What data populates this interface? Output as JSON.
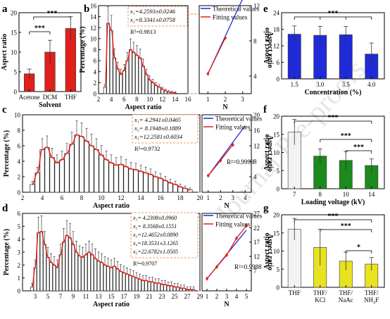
{
  "watermark": "Journal Pre-proofs",
  "colors": {
    "red": "#e0201b",
    "blue": "#1f2bd6",
    "green": "#1c8a1c",
    "yellow": "#e8e320",
    "white": "#f2f2f2",
    "dashOrange": "#e8763a"
  },
  "chart_data": [
    {
      "panel": "a",
      "type": "bar",
      "categories": [
        "Acetone",
        "DCM",
        "THF"
      ],
      "values": [
        4.5,
        10.0,
        16.0
      ],
      "errors": [
        1.2,
        3.0,
        3.0
      ],
      "xlabel": "Solvent",
      "ylabel": "Aspect ratio",
      "ylim": [
        0,
        20
      ],
      "yticks": [
        "0",
        "5",
        "10",
        "15",
        "20"
      ],
      "significance": [
        {
          "pair": [
            "Acetone",
            "DCM"
          ],
          "label": "***"
        },
        {
          "pair": [
            "Acetone",
            "THF"
          ],
          "label": "***"
        }
      ]
    },
    {
      "panel": "b",
      "type": "bar",
      "subtype": "histogram-with-fit",
      "xlabel": "Aspect ratio",
      "ylabel": "Percentage (%)",
      "xlim": [
        2,
        16
      ],
      "ylim": [
        0,
        16
      ],
      "xticks": [
        "2",
        "4",
        "6",
        "8",
        "10",
        "12",
        "14",
        "16"
      ],
      "yticks": [
        "0",
        "2",
        "4",
        "6",
        "8",
        "10",
        "12",
        "14",
        "16"
      ],
      "values": [
        1.2,
        12.8,
        11.5,
        6.5,
        4.5,
        3.5,
        4.2,
        6.0,
        8.0,
        7.5,
        7.0,
        6.5,
        5.0,
        3.5,
        2.5,
        2.0,
        1.5,
        1.2,
        0.8,
        0.5,
        0.3,
        0.2,
        0.1
      ],
      "bin_start": 3.0,
      "bin_width": 0.5,
      "fit_labels": [
        "x₁=4.2593±0.0246",
        "x₂=8.3341±0.0758",
        "R²=0.9813"
      ]
    },
    {
      "panel": "b-inset",
      "type": "line",
      "xlabel": "N",
      "ylabel": "Aspect ratio",
      "xlim": [
        0.5,
        3.5
      ],
      "ylim": [
        2,
        12
      ],
      "xticks": [
        "1",
        "2",
        "3"
      ],
      "yticks": [
        "4",
        "8",
        "12"
      ],
      "legend": [
        "Theoretical values",
        "Fitting values"
      ],
      "series": [
        {
          "name": "Theoretical values",
          "x": [
            1,
            2,
            3
          ],
          "y": [
            4.26,
            8.52,
            12.78
          ]
        },
        {
          "name": "Fitting values",
          "x": [
            1,
            2
          ],
          "y": [
            4.26,
            8.33
          ]
        }
      ]
    },
    {
      "panel": "c",
      "type": "bar",
      "subtype": "histogram-with-fit",
      "xlabel": "Aspect ratio",
      "ylabel": "Percentage (%)",
      "xlim": [
        2,
        20
      ],
      "ylim": [
        0,
        10
      ],
      "xticks": [
        "2",
        "4",
        "6",
        "8",
        "10",
        "12",
        "14",
        "16",
        "18",
        "20"
      ],
      "yticks": [
        "0",
        "2",
        "4",
        "6",
        "8",
        "10"
      ],
      "values": [
        1.0,
        2.5,
        5.5,
        5.8,
        4.5,
        3.8,
        4.2,
        5.0,
        6.2,
        7.4,
        7.2,
        6.6,
        6.0,
        5.5,
        4.8,
        4.2,
        3.8,
        3.5,
        3.6,
        3.3,
        3.0,
        2.9,
        2.7,
        2.5,
        2.3,
        2.0,
        1.8,
        1.5,
        1.2,
        1.0,
        0.7,
        0.5,
        0.3
      ],
      "bin_start": 3.0,
      "bin_width": 0.5,
      "fit_labels": [
        "x₁= 4.2941±0.0465",
        "x₂= 8.1948±0.1889",
        "x₃=12.2581±0.6034",
        "R²=0.9732"
      ]
    },
    {
      "panel": "c-inset",
      "type": "line",
      "xlabel": "N",
      "ylabel": "Aspect ratio",
      "xlim": [
        0.5,
        4.5
      ],
      "ylim": [
        0,
        20
      ],
      "xticks": [
        "1",
        "2",
        "3",
        "4"
      ],
      "yticks": [
        "4",
        "8",
        "12",
        "16",
        "20"
      ],
      "legend": [
        "Theoretical values",
        "Fitting values"
      ],
      "annotation": "R²=0.9998",
      "series": [
        {
          "name": "Theoretical values",
          "x": [
            1,
            2,
            3,
            4
          ],
          "y": [
            4.29,
            8.59,
            12.88,
            17.18
          ]
        },
        {
          "name": "Fitting values",
          "x": [
            1,
            2,
            3
          ],
          "y": [
            4.29,
            8.19,
            12.26
          ]
        }
      ]
    },
    {
      "panel": "d",
      "type": "bar",
      "subtype": "histogram-with-fit",
      "xlabel": "Aspect ratio",
      "ylabel": "Percentage (%)",
      "xlim": [
        1,
        29
      ],
      "ylim": [
        0,
        6
      ],
      "xticks": [
        "3",
        "5",
        "7",
        "9",
        "11",
        "13",
        "15",
        "17",
        "19",
        "21",
        "23",
        "25",
        "27",
        "29"
      ],
      "yticks": [
        "0",
        "1",
        "2",
        "3",
        "4",
        "5",
        "6"
      ],
      "values": [
        0.3,
        1.8,
        4.5,
        4.6,
        3.6,
        2.6,
        2.2,
        2.0,
        1.8,
        2.8,
        3.8,
        4.3,
        4.1,
        3.6,
        3.0,
        2.7,
        2.6,
        2.8,
        3.0,
        2.8,
        2.5,
        2.3,
        2.2,
        2.0,
        1.9,
        1.8,
        1.9,
        1.7,
        1.5,
        1.4,
        1.3,
        1.2,
        1.1,
        1.0,
        0.9,
        0.8,
        0.8,
        0.7,
        0.7,
        0.6,
        0.6,
        0.5,
        0.5,
        0.4,
        0.4,
        0.3,
        0.3,
        0.2,
        0.2,
        0.1,
        0.1,
        0.1
      ],
      "bin_start": 2.5,
      "bin_width": 0.5,
      "fit_labels": [
        "x₁= 4.2308±0.0960",
        "x₂= 8.3568±0.1551",
        "x₃=12.4652±0.0890",
        "x₄=18.3531±3.1265",
        "x₅=22.6782±1.0505",
        "R²=0.9707"
      ]
    },
    {
      "panel": "d-inset",
      "type": "line",
      "xlabel": "N",
      "ylabel": "Aspect ratio",
      "xlim": [
        0.5,
        5.5
      ],
      "ylim": [
        0,
        27
      ],
      "xticks": [
        "1",
        "2",
        "3",
        "4",
        "5"
      ],
      "yticks": [
        "7",
        "12",
        "17",
        "22",
        "27"
      ],
      "legend": [
        "Theoretical values",
        "Fitting values"
      ],
      "annotation": "R²=0.9988",
      "series": [
        {
          "name": "Theoretical values",
          "x": [
            1,
            2,
            3,
            4,
            5
          ],
          "y": [
            4.23,
            8.46,
            12.69,
            16.92,
            21.15
          ]
        },
        {
          "name": "Fitting values",
          "x": [
            1,
            2,
            3,
            4,
            5
          ],
          "y": [
            4.23,
            8.36,
            12.47,
            18.35,
            22.68
          ]
        }
      ]
    },
    {
      "panel": "e",
      "type": "bar",
      "categories": [
        "1.5",
        "3.0",
        "3.5",
        "4.0"
      ],
      "values": [
        16.2,
        15.8,
        16.0,
        9.0
      ],
      "errors": [
        3.0,
        3.2,
        3.0,
        4.0
      ],
      "xlabel": "Concentration (%)",
      "ylabel": "Aspect ratio",
      "ylim": [
        0,
        24
      ],
      "yticks": [
        "0",
        "6",
        "12",
        "18",
        "24"
      ],
      "significance": [
        {
          "pair": [
            "1.5",
            "4.0"
          ],
          "label": "***"
        }
      ]
    },
    {
      "panel": "f",
      "type": "bar",
      "categories": [
        "7",
        "8",
        "10",
        "14"
      ],
      "values": [
        15.6,
        9.0,
        7.8,
        6.4
      ],
      "errors": [
        3.5,
        2.0,
        2.5,
        1.8
      ],
      "xlabel": "Loading voltage (kV)",
      "ylabel": "Aspect ratio",
      "ylim": [
        0,
        20
      ],
      "yticks": [
        "0",
        "5",
        "10",
        "15",
        "20"
      ],
      "significance": [
        {
          "label": "***"
        },
        {
          "label": "***"
        },
        {
          "label": "***"
        }
      ]
    },
    {
      "panel": "g",
      "type": "bar",
      "categories": [
        "THF",
        "THF/ KCl",
        "THF/ NaAc",
        "THF/ NH₄F"
      ],
      "values": [
        16.0,
        11.0,
        7.2,
        6.4
      ],
      "errors": [
        3.0,
        5.0,
        2.5,
        1.8
      ],
      "xlabel": "",
      "ylabel": "Aspect ratio",
      "ylim": [
        0,
        20
      ],
      "yticks": [
        "0",
        "5",
        "10",
        "15",
        "20"
      ],
      "significance": [
        {
          "label": "***"
        },
        {
          "label": "***"
        },
        {
          "label": "*"
        }
      ]
    }
  ]
}
